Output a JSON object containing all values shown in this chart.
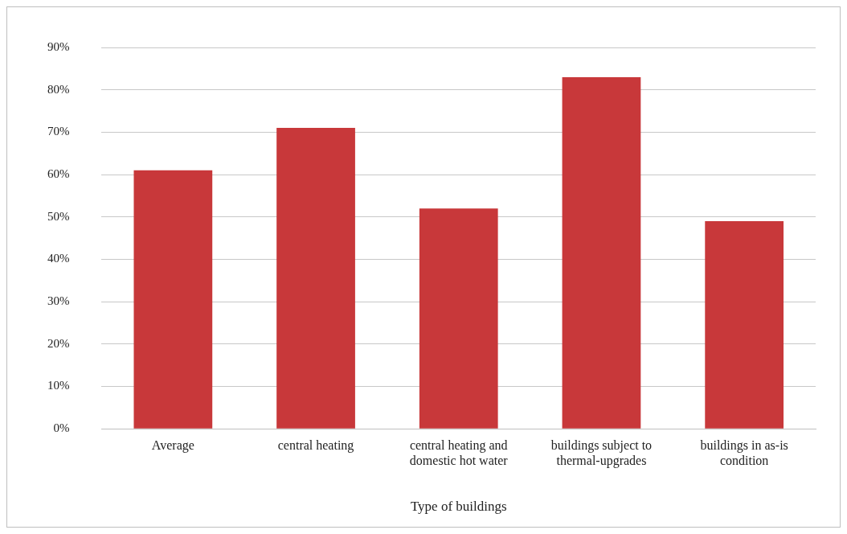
{
  "chart_data": {
    "type": "bar",
    "xlabel": "Type of buildings",
    "categories": [
      "Average",
      "central heating",
      "central heating and domestic hot water",
      "buildings subject to thermal-upgrades",
      "buildings in as-is condition"
    ],
    "values": [
      61,
      71,
      52,
      83,
      49
    ],
    "color": "#c8383a",
    "ylim": [
      0,
      90
    ],
    "yticks": [
      {
        "value": 0,
        "label": "0%"
      },
      {
        "value": 10,
        "label": "10%"
      },
      {
        "value": 20,
        "label": "20%"
      },
      {
        "value": 30,
        "label": "30%"
      },
      {
        "value": 40,
        "label": "40%"
      },
      {
        "value": 50,
        "label": "50%"
      },
      {
        "value": 60,
        "label": "60%"
      },
      {
        "value": 70,
        "label": "70%"
      },
      {
        "value": 80,
        "label": "80%"
      },
      {
        "value": 90,
        "label": "90%"
      }
    ],
    "grid": "y",
    "legend": false
  }
}
